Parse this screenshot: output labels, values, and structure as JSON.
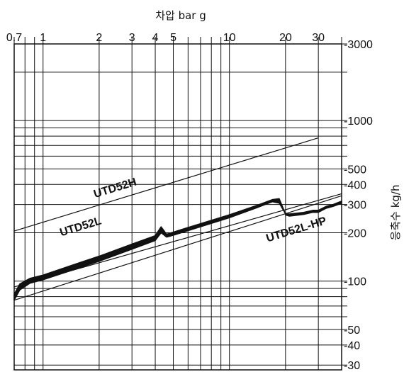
{
  "chart_data": {
    "type": "line",
    "x_scale": "log",
    "y_scale": "log",
    "grid": true,
    "xlim": [
      0.7,
      40
    ],
    "ylim": [
      28,
      3000
    ],
    "xlabel": "차압 bar g",
    "ylabel": "응축수 kg/h",
    "x_ticks_labeled": [
      {
        "value": 0.7,
        "label": "0.7"
      },
      {
        "value": 1,
        "label": "1"
      },
      {
        "value": 2,
        "label": "2"
      },
      {
        "value": 3,
        "label": "3"
      },
      {
        "value": 4,
        "label": "4"
      },
      {
        "value": 5,
        "label": "5"
      },
      {
        "value": 10,
        "label": "10"
      },
      {
        "value": 20,
        "label": "20"
      },
      {
        "value": 30,
        "label": "30"
      }
    ],
    "y_ticks_labeled": [
      {
        "value": 3000,
        "label": "3000"
      },
      {
        "value": 1000,
        "label": "1000"
      },
      {
        "value": 500,
        "label": "500"
      },
      {
        "value": 400,
        "label": "400"
      },
      {
        "value": 300,
        "label": "300"
      },
      {
        "value": 200,
        "label": "200"
      },
      {
        "value": 100,
        "label": "100"
      },
      {
        "value": 50,
        "label": "50"
      },
      {
        "value": 40,
        "label": "40"
      },
      {
        "value": 30,
        "label": "30"
      }
    ],
    "series": [
      {
        "name": "UTD52H",
        "style": "thin",
        "x": [
          0.7,
          30
        ],
        "y": [
          205,
          780
        ]
      },
      {
        "name": "UTD52L",
        "style": "band",
        "x": [
          0.7,
          0.75,
          0.85,
          1.0,
          1.5,
          2.0,
          3.0,
          4.0,
          4.3,
          4.6,
          5.0,
          7.0,
          10.0,
          14.0,
          17.0,
          18.5,
          20.0
        ],
        "y_upper": [
          83,
          96,
          104,
          109,
          128,
          143,
          170,
          192,
          218,
          196,
          202,
          228,
          259,
          296,
          322,
          326,
          262
        ],
        "y_lower": [
          76,
          88,
          97,
          102,
          119,
          133,
          158,
          179,
          200,
          188,
          193,
          218,
          248,
          286,
          312,
          306,
          262
        ]
      },
      {
        "name": "UTD52L-HP",
        "style": "band",
        "x": [
          20,
          21,
          25,
          28,
          30,
          33,
          36,
          40
        ],
        "y_upper": [
          262,
          262,
          268,
          276,
          276,
          292,
          300,
          315
        ],
        "y_lower": [
          258,
          254,
          260,
          268,
          268,
          284,
          292,
          305
        ]
      },
      {
        "name": "",
        "style": "thin",
        "x": [
          0.7,
          40
        ],
        "y": [
          92,
          350
        ]
      },
      {
        "name": "",
        "style": "thin",
        "x": [
          0.7,
          40
        ],
        "y": [
          76,
          340
        ]
      }
    ],
    "line_color": "#111111",
    "grid_color": "#111111",
    "background": "#ffffff"
  }
}
